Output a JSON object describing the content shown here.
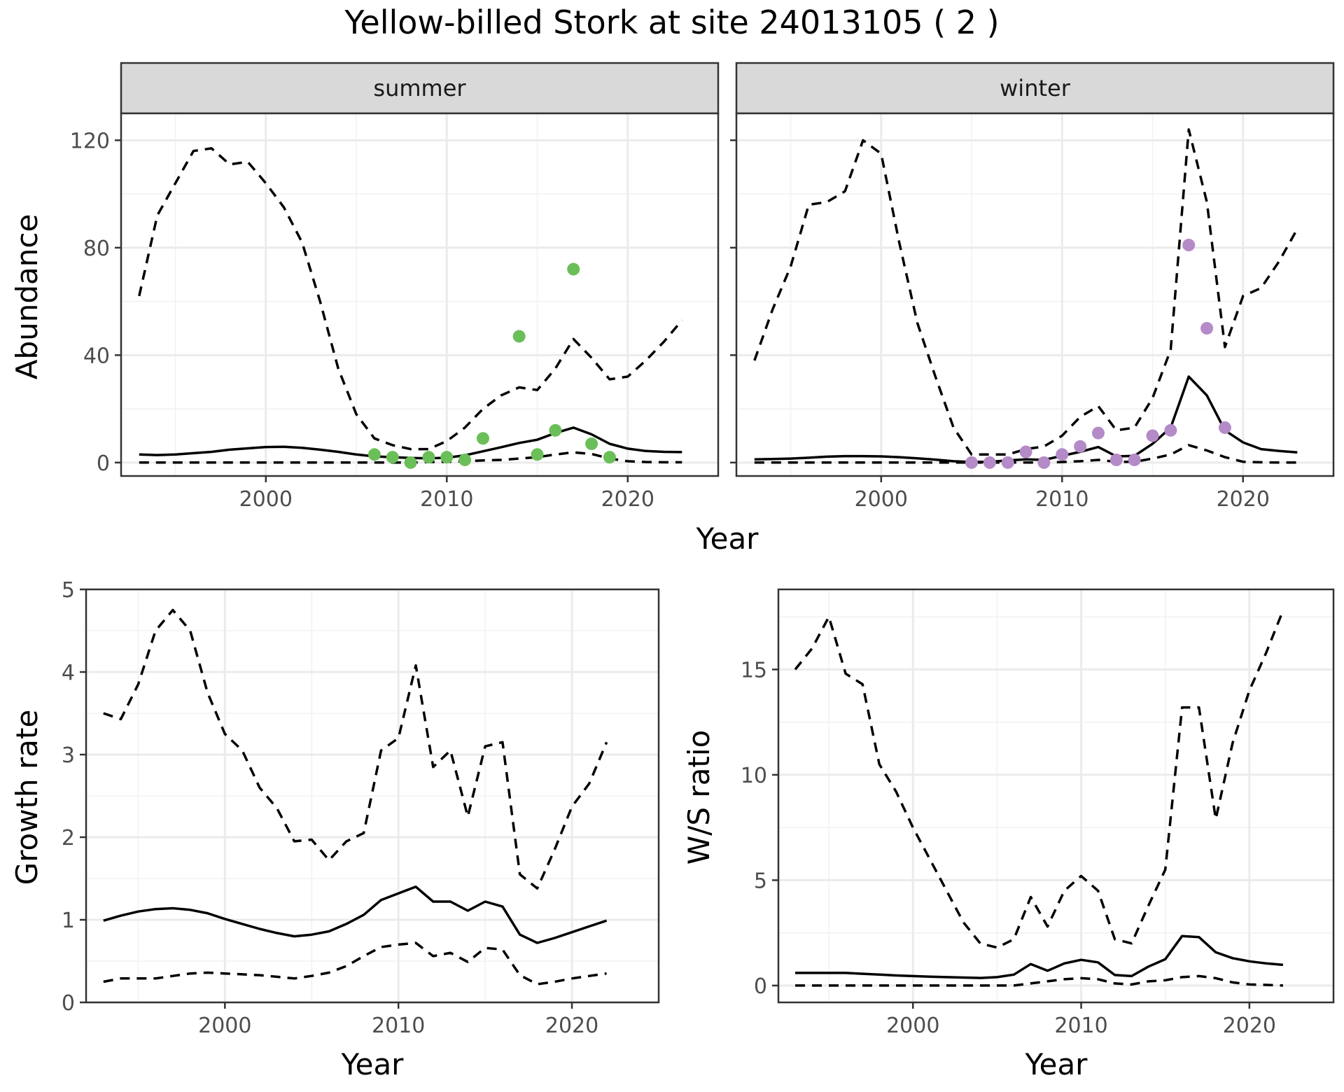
{
  "figure": {
    "title": "Yellow-billed Stork at site 24013105 ( 2 )"
  },
  "chart_data": [
    {
      "type": "line",
      "facet": "summer",
      "xlabel": "Year",
      "ylabel": "Abundance",
      "xlim": [
        1992,
        2025
      ],
      "ylim": [
        -5,
        130
      ],
      "xticks": [
        2000,
        2010,
        2020
      ],
      "yticks": [
        0,
        40,
        80,
        120
      ],
      "point_color": "#6bbf59",
      "x": [
        1993,
        1994,
        1995,
        1996,
        1997,
        1998,
        1999,
        2000,
        2001,
        2002,
        2003,
        2004,
        2005,
        2006,
        2007,
        2008,
        2009,
        2010,
        2011,
        2012,
        2013,
        2014,
        2015,
        2016,
        2017,
        2018,
        2019,
        2020,
        2021,
        2022,
        2023
      ],
      "series": [
        {
          "role": "mean",
          "style": "solid",
          "values": [
            3,
            2.8,
            3,
            3.5,
            4,
            4.8,
            5.3,
            5.8,
            5.9,
            5.5,
            4.8,
            4,
            3,
            2.3,
            2,
            1.7,
            1.6,
            1.8,
            2.7,
            4.2,
            5.7,
            7.3,
            8.5,
            11,
            13,
            10.5,
            7,
            5.2,
            4.3,
            4,
            3.9
          ]
        },
        {
          "role": "upper",
          "style": "dashed",
          "values": [
            62,
            92,
            104,
            116,
            117,
            111,
            112,
            104,
            95,
            82,
            60,
            35,
            18,
            9,
            6.5,
            5,
            5,
            8,
            13,
            20,
            25,
            28,
            27,
            35,
            46,
            39,
            31,
            32,
            38,
            45,
            53
          ]
        },
        {
          "role": "lower",
          "style": "dashed",
          "values": [
            0,
            0,
            0,
            0,
            0,
            0,
            0,
            0,
            0,
            0,
            0,
            0,
            0,
            0,
            0,
            0,
            0.2,
            0.3,
            0.5,
            0.8,
            1,
            1.5,
            2,
            3,
            3.8,
            3.2,
            1.5,
            0.5,
            0.2,
            0.1,
            0.1
          ]
        }
      ],
      "points": {
        "x": [
          2006,
          2007,
          2008,
          2009,
          2010,
          2011,
          2012,
          2014,
          2015,
          2016,
          2017,
          2018,
          2019
        ],
        "y": [
          3,
          2,
          0,
          2,
          2,
          1,
          9,
          47,
          3,
          12,
          72,
          7,
          2
        ]
      }
    },
    {
      "type": "line",
      "facet": "winter",
      "xlabel": "Year",
      "ylabel": "Abundance",
      "xlim": [
        1992,
        2025
      ],
      "ylim": [
        -5,
        130
      ],
      "xticks": [
        2000,
        2010,
        2020
      ],
      "yticks": [
        0,
        40,
        80,
        120
      ],
      "point_color": "#b48ac7",
      "x": [
        1993,
        1994,
        1995,
        1996,
        1997,
        1998,
        1999,
        2000,
        2001,
        2002,
        2003,
        2004,
        2005,
        2006,
        2007,
        2008,
        2009,
        2010,
        2011,
        2012,
        2013,
        2014,
        2015,
        2016,
        2017,
        2018,
        2019,
        2020,
        2021,
        2022,
        2023
      ],
      "series": [
        {
          "role": "mean",
          "style": "solid",
          "values": [
            1.2,
            1.3,
            1.5,
            1.8,
            2.2,
            2.4,
            2.4,
            2.3,
            2,
            1.6,
            1.1,
            0.5,
            0.2,
            0.3,
            0.8,
            1.2,
            1,
            2.5,
            4,
            5.8,
            2.3,
            2.5,
            7,
            13,
            32,
            25,
            12,
            7.5,
            5,
            4.3,
            3.8
          ]
        },
        {
          "role": "upper",
          "style": "dashed",
          "values": [
            38,
            57,
            73,
            96,
            97,
            101,
            120,
            115,
            82,
            52,
            32,
            13,
            3,
            3,
            3,
            5,
            6,
            10,
            17,
            21,
            12,
            13,
            24,
            42,
            124,
            97,
            43,
            62,
            65,
            75,
            87
          ]
        },
        {
          "role": "lower",
          "style": "dashed",
          "values": [
            0,
            0,
            0,
            0,
            0,
            0,
            0,
            0,
            0,
            0,
            0,
            0,
            0,
            0,
            0,
            0,
            0,
            0.2,
            0.5,
            1,
            0.3,
            0.3,
            1.5,
            3,
            6.5,
            4.5,
            2,
            0.3,
            0.1,
            0,
            0
          ]
        }
      ],
      "points": {
        "x": [
          2005,
          2006,
          2007,
          2008,
          2009,
          2010,
          2011,
          2012,
          2013,
          2014,
          2015,
          2016,
          2017,
          2018,
          2019
        ],
        "y": [
          0,
          0,
          0,
          4,
          0,
          3,
          6,
          11,
          1,
          1,
          10,
          12,
          81,
          50,
          13
        ]
      }
    },
    {
      "type": "line",
      "xlabel": "Year",
      "ylabel": "Growth rate",
      "xlim": [
        1992,
        2025
      ],
      "ylim": [
        0,
        5
      ],
      "xticks": [
        2000,
        2010,
        2020
      ],
      "yticks": [
        0,
        1,
        2,
        3,
        4,
        5
      ],
      "x": [
        1993,
        1994,
        1995,
        1996,
        1997,
        1998,
        1999,
        2000,
        2001,
        2002,
        2003,
        2004,
        2005,
        2006,
        2007,
        2008,
        2009,
        2010,
        2011,
        2012,
        2013,
        2014,
        2015,
        2016,
        2017,
        2018,
        2019,
        2020,
        2021,
        2022
      ],
      "series": [
        {
          "role": "mean",
          "style": "solid",
          "values": [
            0.99,
            1.05,
            1.1,
            1.13,
            1.14,
            1.12,
            1.08,
            1.01,
            0.95,
            0.89,
            0.84,
            0.8,
            0.82,
            0.86,
            0.95,
            1.06,
            1.24,
            1.32,
            1.4,
            1.22,
            1.22,
            1.11,
            1.22,
            1.16,
            0.82,
            0.72,
            0.78,
            0.85,
            0.92,
            0.99
          ]
        },
        {
          "role": "upper",
          "style": "dashed",
          "values": [
            3.5,
            3.43,
            3.85,
            4.5,
            4.75,
            4.5,
            3.75,
            3.25,
            3.05,
            2.6,
            2.35,
            1.95,
            1.97,
            1.72,
            1.95,
            2.05,
            3.05,
            3.2,
            4.08,
            2.85,
            3.05,
            2.25,
            3.1,
            3.15,
            1.55,
            1.38,
            1.85,
            2.37,
            2.65,
            3.15
          ]
        },
        {
          "role": "lower",
          "style": "dashed",
          "values": [
            0.25,
            0.29,
            0.29,
            0.29,
            0.32,
            0.35,
            0.36,
            0.35,
            0.34,
            0.33,
            0.31,
            0.29,
            0.32,
            0.36,
            0.44,
            0.56,
            0.67,
            0.7,
            0.72,
            0.56,
            0.6,
            0.49,
            0.66,
            0.64,
            0.33,
            0.22,
            0.25,
            0.29,
            0.32,
            0.35
          ]
        }
      ]
    },
    {
      "type": "line",
      "xlabel": "Year",
      "ylabel": "W/S ratio",
      "xlim": [
        1992,
        2025
      ],
      "ylim": [
        -0.8,
        18.8
      ],
      "xticks": [
        2000,
        2010,
        2020
      ],
      "yticks": [
        0,
        5,
        10,
        15
      ],
      "x": [
        1993,
        1994,
        1995,
        1996,
        1997,
        1998,
        1999,
        2000,
        2001,
        2002,
        2003,
        2004,
        2005,
        2006,
        2007,
        2008,
        2009,
        2010,
        2011,
        2012,
        2013,
        2014,
        2015,
        2016,
        2017,
        2018,
        2019,
        2020,
        2021,
        2022
      ],
      "series": [
        {
          "role": "mean",
          "style": "solid",
          "values": [
            0.6,
            0.6,
            0.6,
            0.6,
            0.56,
            0.52,
            0.48,
            0.45,
            0.42,
            0.4,
            0.38,
            0.36,
            0.4,
            0.52,
            1.02,
            0.7,
            1.05,
            1.22,
            1.1,
            0.5,
            0.45,
            0.9,
            1.25,
            2.35,
            2.3,
            1.58,
            1.3,
            1.15,
            1.05,
            0.98
          ]
        },
        {
          "role": "upper",
          "style": "dashed",
          "values": [
            15,
            16,
            17.5,
            14.8,
            14.3,
            10.5,
            9.2,
            7.5,
            6,
            4.5,
            3,
            2,
            1.8,
            2.2,
            4.2,
            2.8,
            4.5,
            5.2,
            4.5,
            2.2,
            2,
            3.8,
            5.5,
            13.2,
            13.2,
            7.9,
            11.5,
            14,
            15.8,
            17.8
          ]
        },
        {
          "role": "lower",
          "style": "dashed",
          "values": [
            0,
            0,
            0,
            0,
            0,
            0,
            0,
            0,
            0,
            0,
            0,
            0,
            0,
            0,
            0.1,
            0.2,
            0.3,
            0.35,
            0.3,
            0.1,
            0.05,
            0.2,
            0.25,
            0.4,
            0.45,
            0.35,
            0.15,
            0.05,
            0.03,
            0
          ]
        }
      ]
    }
  ]
}
